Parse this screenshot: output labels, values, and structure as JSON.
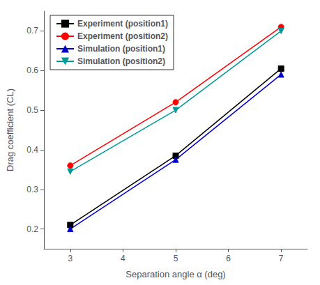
{
  "chart_data": {
    "type": "line",
    "x_label": "Separation angle α (deg)",
    "y_label": "Drag coefficient (CL)",
    "x": [
      3,
      5,
      7
    ],
    "series": [
      {
        "name": "Experiment (position1)",
        "color": "#000000",
        "marker": "square",
        "line_style": "solid",
        "values": [
          0.21,
          0.385,
          0.605
        ]
      },
      {
        "name": "Experiment (position2)",
        "color": "#ff0000",
        "marker": "circle",
        "line_style": "solid",
        "values": [
          0.36,
          0.52,
          0.71
        ]
      },
      {
        "name": "Simulation (position1)",
        "color": "#0000cc",
        "marker": "triangle-up",
        "line_style": "solid",
        "values": [
          0.2,
          0.375,
          0.59
        ]
      },
      {
        "name": "Simulation (position2)",
        "color": "#009999",
        "marker": "triangle-down",
        "line_style": "solid",
        "values": [
          0.345,
          0.5,
          0.7
        ]
      }
    ],
    "xlim": [
      2.5,
      7.5
    ],
    "ylim": [
      0.15,
      0.75
    ],
    "xticks": [
      3,
      4,
      5,
      6,
      7
    ],
    "yticks": [
      0.2,
      0.3,
      0.4,
      0.5,
      0.6,
      0.7
    ],
    "legend": "upper left",
    "grid": false
  }
}
